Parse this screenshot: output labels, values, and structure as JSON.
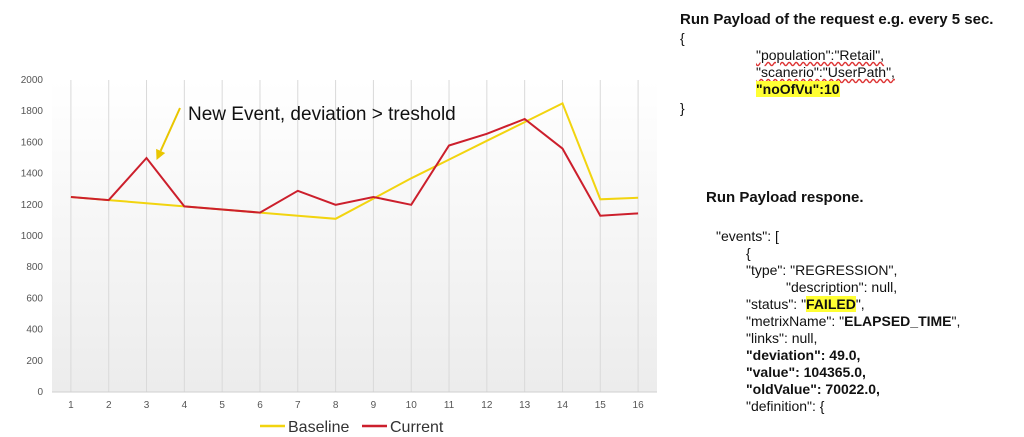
{
  "chart_data": {
    "type": "line",
    "x": [
      1,
      2,
      3,
      4,
      5,
      6,
      7,
      8,
      9,
      10,
      11,
      12,
      13,
      14,
      15,
      16
    ],
    "ylim": [
      0,
      2000
    ],
    "yticks": [
      0,
      200,
      400,
      600,
      800,
      1000,
      1200,
      1400,
      1600,
      1800,
      2000
    ],
    "series": [
      {
        "name": "Baseline",
        "color": "#f2d40f",
        "values": [
          1250,
          1230,
          1210,
          1190,
          1170,
          1150,
          1130,
          1110,
          1240,
          1370,
          1490,
          1610,
          1730,
          1850,
          1235,
          1245
        ]
      },
      {
        "name": "Current",
        "color": "#cc1f2c",
        "values": [
          1250,
          1230,
          1500,
          1190,
          1170,
          1150,
          1290,
          1200,
          1250,
          1200,
          1580,
          1655,
          1750,
          1560,
          1130,
          1145
        ]
      }
    ],
    "annotation": {
      "text": "New Event, deviation > treshold",
      "target_x": 3,
      "target_y": 1500
    },
    "grid": "vertical lines",
    "legend": "bottom"
  },
  "request": {
    "title": "Run Payload of the request e.g. every 5 sec.",
    "open": "{",
    "line1": "\"population\":\"Retail\",",
    "line2": "\"scanerio\":\"UserPath\",",
    "line3": "\"noOfVu\":10",
    "close": "}"
  },
  "response": {
    "title": "Run Payload respone.",
    "l1": "\"events\": [",
    "l2": "{",
    "l3": "\"type\": \"REGRESSION\",",
    "l4": "\"description\": null,",
    "status_key": "\"status\": \"",
    "status_val": "FAILED",
    "status_end": "\",",
    "metrix_key": "\"metrixName\": \"",
    "metrix_val": "ELAPSED_TIME",
    "metrix_end": "\",",
    "l7": "\"links\": null,",
    "dev_key": "\"deviation\"",
    "dev_val": ": 49.0,",
    "val_key": "\"value\"",
    "val_val": ": 104365.0,",
    "old_key": "\"oldValue\"",
    "old_val": ": 70022.0,",
    "l11": "\"definition\": {"
  }
}
